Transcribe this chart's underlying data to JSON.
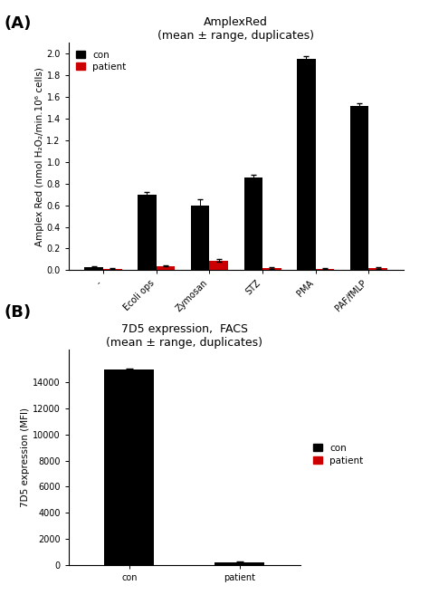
{
  "panel_a": {
    "title": "AmplexRed\n(mean ± range, duplicates)",
    "categories": [
      "-",
      "Ecoli ops",
      "Zymosan",
      "STZ",
      "PMA",
      "PAF/fMLP"
    ],
    "con_values": [
      0.025,
      0.7,
      0.6,
      0.86,
      1.95,
      1.52
    ],
    "patient_values": [
      0.015,
      0.04,
      0.09,
      0.02,
      0.015,
      0.02
    ],
    "con_errors": [
      0.012,
      0.022,
      0.055,
      0.022,
      0.028,
      0.022
    ],
    "patient_errors": [
      0.005,
      0.008,
      0.012,
      0.005,
      0.005,
      0.005
    ],
    "ylabel": "Amplex Red (nmol H₂O₂/min.10⁶ cells)",
    "ylim": [
      0,
      2.1
    ],
    "yticks": [
      0.0,
      0.2,
      0.4,
      0.6,
      0.8,
      1.0,
      1.2,
      1.4,
      1.6,
      1.8,
      2.0
    ],
    "bar_width": 0.35,
    "con_color": "#000000",
    "patient_color": "#cc0000",
    "legend_labels": [
      "con",
      "patient"
    ]
  },
  "panel_b": {
    "title": "7D5 expression,  FACS\n(mean ± range, duplicates)",
    "categories": [
      "con",
      "patient"
    ],
    "bar_values": [
      15000,
      200
    ],
    "bar_colors": [
      "#000000",
      "#000000"
    ],
    "bar_errors": [
      100,
      50
    ],
    "ylabel": "7D5 expression (MFI)",
    "ylim": [
      0,
      16500
    ],
    "yticks": [
      0,
      2000,
      4000,
      6000,
      8000,
      10000,
      12000,
      14000
    ],
    "bar_width": 0.45,
    "con_color": "#000000",
    "patient_color": "#cc0000",
    "legend_labels": [
      "con",
      "patient"
    ]
  },
  "panel_label_fontsize": 13,
  "title_fontsize": 9,
  "axis_fontsize": 7.5,
  "tick_fontsize": 7,
  "legend_fontsize": 7.5,
  "background_color": "#ffffff"
}
